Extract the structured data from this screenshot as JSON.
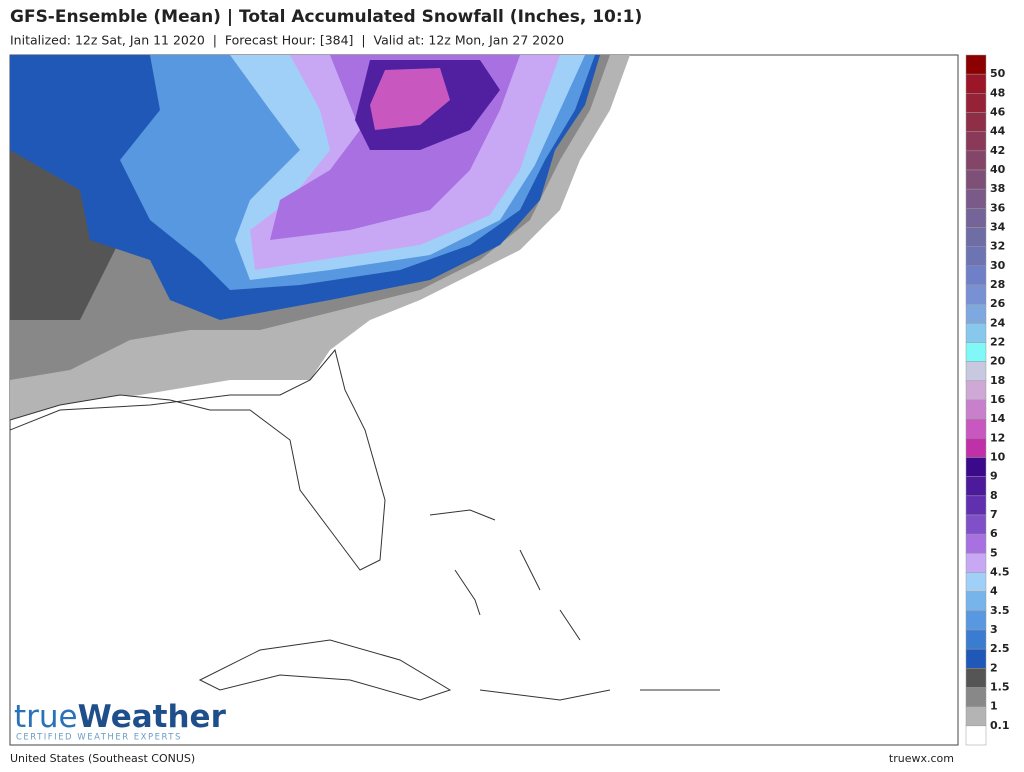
{
  "header": {
    "title": "GFS-Ensemble (Mean) | Total Accumulated Snowfall (Inches, 10:1)",
    "subtitle": "Initalized: 12z Sat, Jan 11 2020  |  Forecast Hour: [384]  |  Valid at: 12z Mon, Jan 27 2020"
  },
  "legend": {
    "labels": [
      "50",
      "48",
      "46",
      "44",
      "42",
      "40",
      "38",
      "36",
      "34",
      "32",
      "30",
      "28",
      "26",
      "24",
      "22",
      "20",
      "18",
      "16",
      "14",
      "12",
      "10",
      "9",
      "8",
      "7",
      "6",
      "5",
      "4.5",
      "4",
      "3.5",
      "3",
      "2.5",
      "2",
      "1.5",
      "1",
      "0.1"
    ],
    "colors": [
      "#8b0000",
      "#9a1628",
      "#962238",
      "#902e48",
      "#8a3a58",
      "#844668",
      "#7e5078",
      "#7a5a88",
      "#746498",
      "#706ca4",
      "#6c74b4",
      "#7080c8",
      "#7890d4",
      "#80a8e0",
      "#88c8ec",
      "#80f8f8",
      "#c8c8e0",
      "#d0a8d8",
      "#c880cc",
      "#c858c0",
      "#c030a8",
      "#3a0a8a",
      "#4c1a9a",
      "#6030b0",
      "#8050c8",
      "#a870e0",
      "#c8a8f4",
      "#a0d0f8",
      "#78b4ec",
      "#5898e0",
      "#3a7cd0",
      "#2058b8",
      "#555555",
      "#888888",
      "#b4b4b4",
      "#ffffff"
    ]
  },
  "logo": {
    "part1": "true",
    "part2": "Weather",
    "tagline": "CERTIFIED WEATHER EXPERTS"
  },
  "footer": {
    "region": "United States (Southeast CONUS)",
    "site": "truewx.com"
  }
}
